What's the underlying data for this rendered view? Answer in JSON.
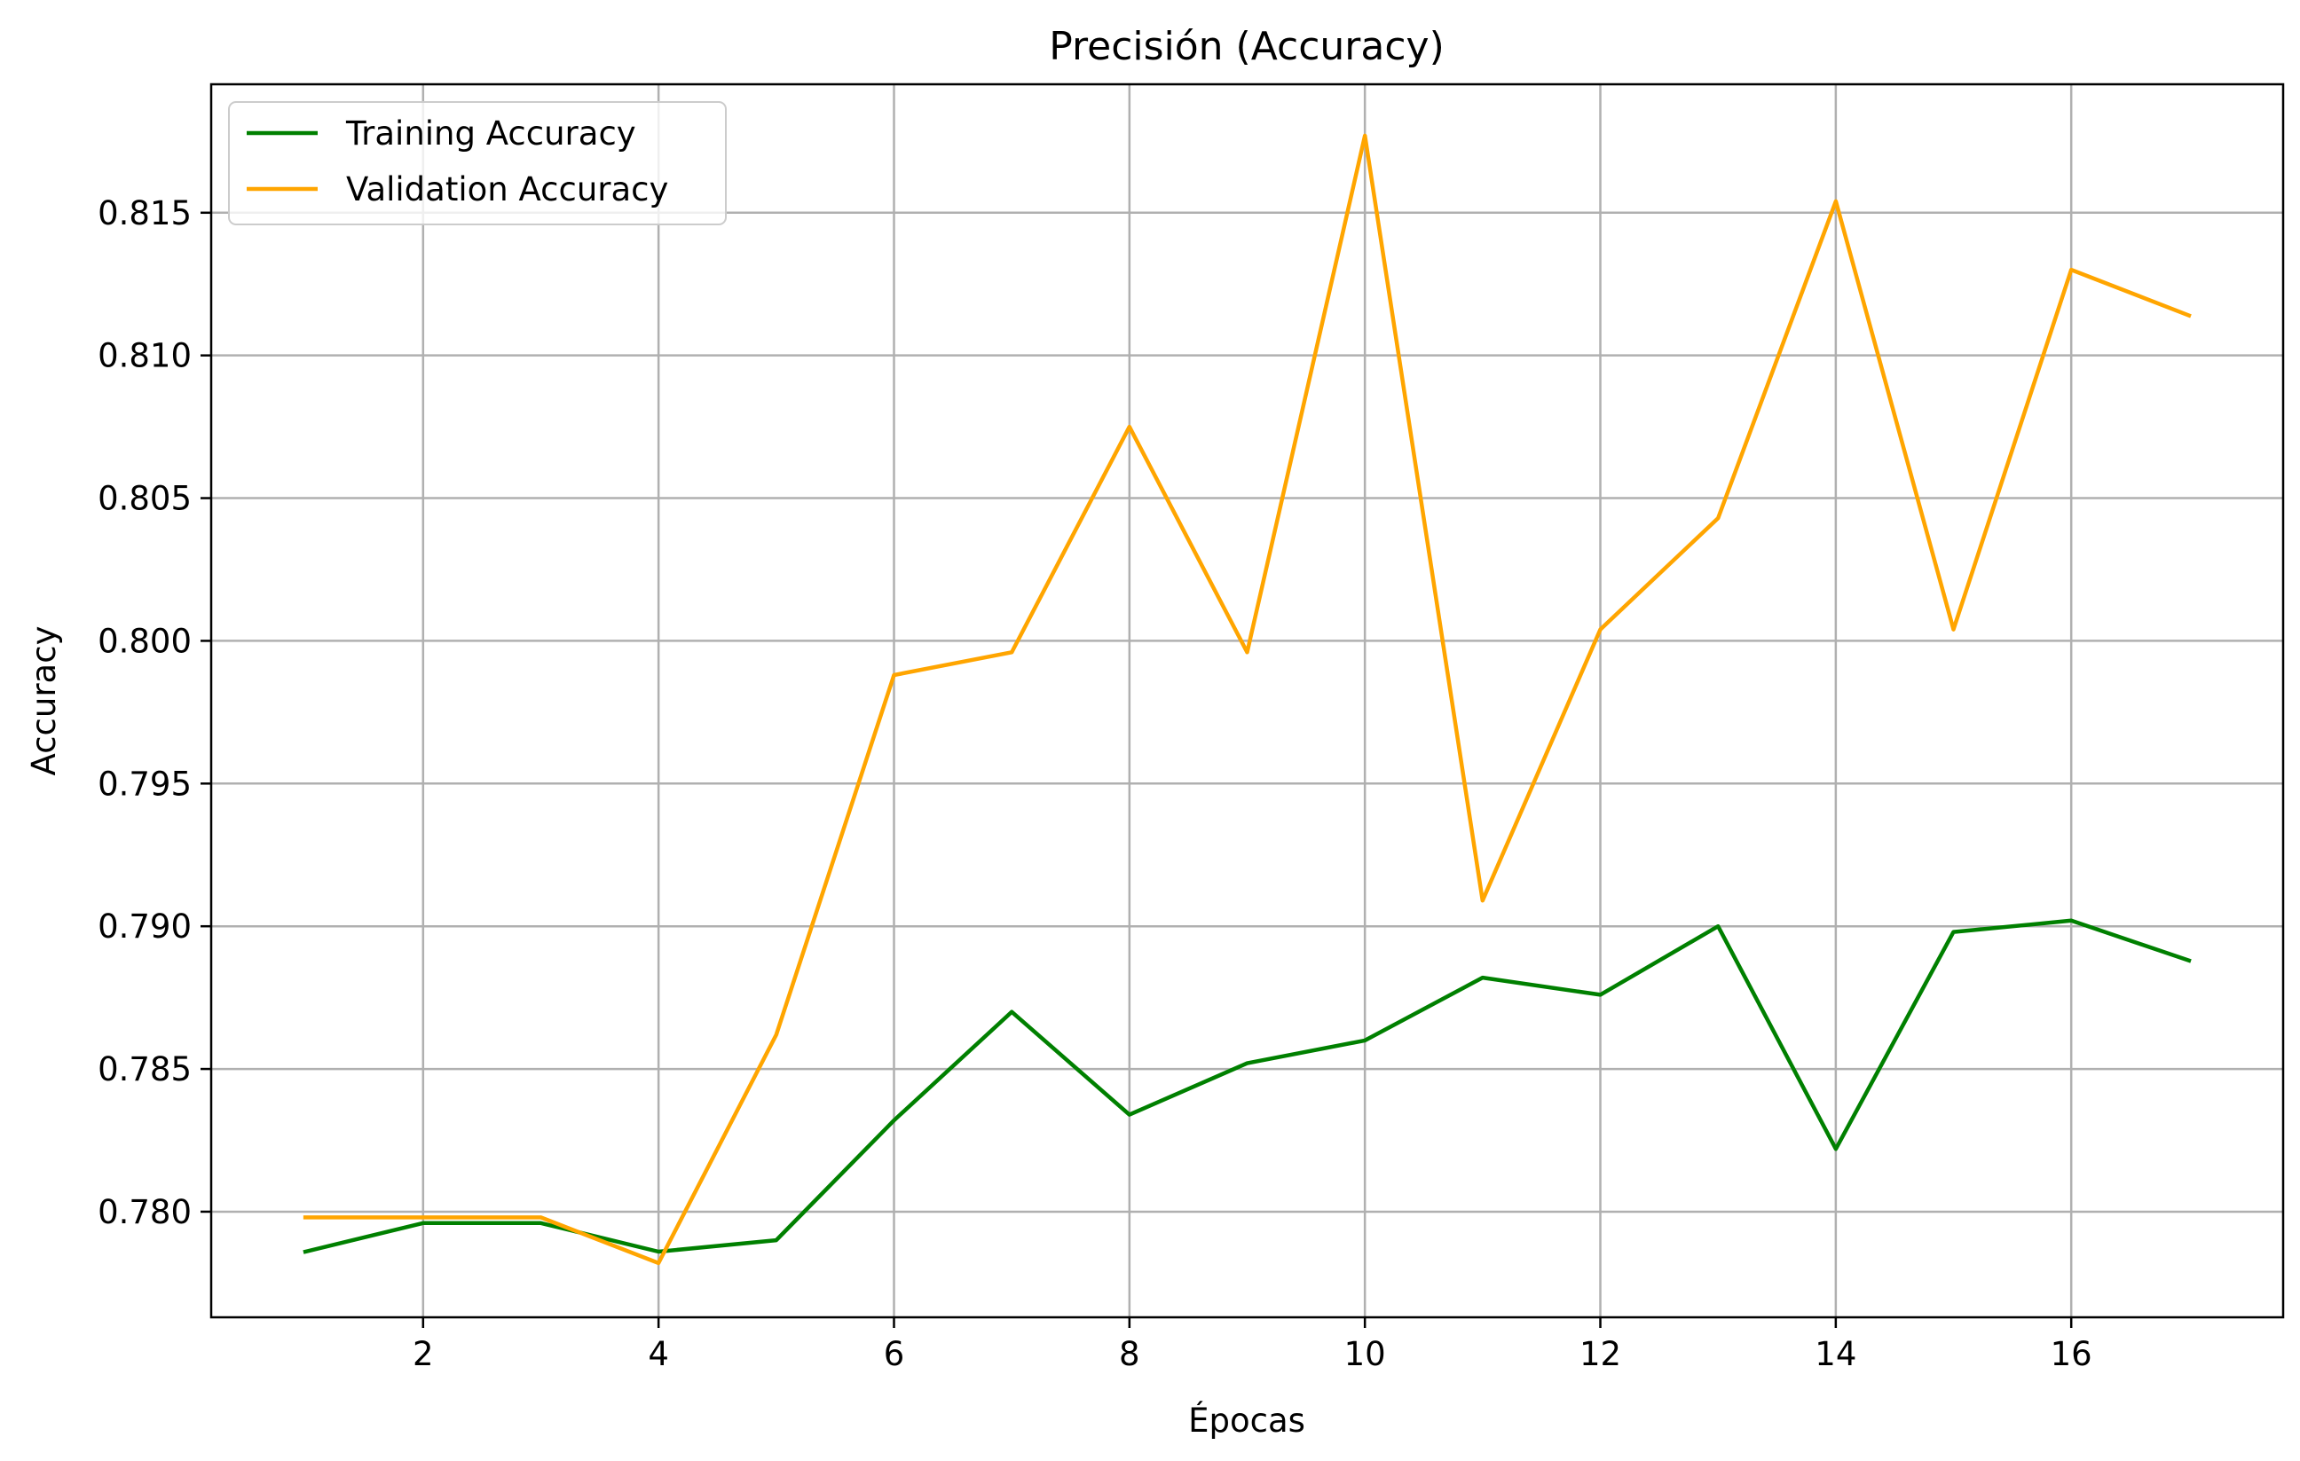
{
  "chart_data": {
    "type": "line",
    "title": "Precisión (Accuracy)",
    "xlabel": "Épocas",
    "ylabel": "Accuracy",
    "x": [
      1,
      2,
      3,
      4,
      5,
      6,
      7,
      8,
      9,
      10,
      11,
      12,
      13,
      14,
      15,
      16,
      17
    ],
    "xlim": [
      0.2,
      17.8
    ],
    "ylim": [
      0.7763,
      0.8195
    ],
    "xticks": [
      2,
      4,
      6,
      8,
      10,
      12,
      14,
      16
    ],
    "xtick_labels": [
      "2",
      "4",
      "6",
      "8",
      "10",
      "12",
      "14",
      "16"
    ],
    "yticks": [
      0.78,
      0.785,
      0.79,
      0.795,
      0.8,
      0.805,
      0.81,
      0.815
    ],
    "ytick_labels": [
      "0.780",
      "0.785",
      "0.790",
      "0.795",
      "0.800",
      "0.805",
      "0.810",
      "0.815"
    ],
    "grid": true,
    "legend_position": "top-left",
    "series": [
      {
        "name": "Training Accuracy",
        "color": "#008000",
        "values": [
          0.7786,
          0.7796,
          0.7796,
          0.7786,
          0.779,
          0.7832,
          0.787,
          0.7834,
          0.7852,
          0.786,
          0.7882,
          0.7876,
          0.79,
          0.7822,
          0.7898,
          0.7902,
          0.7888
        ]
      },
      {
        "name": "Validation Accuracy",
        "color": "#ffa500",
        "values": [
          0.7798,
          0.7798,
          0.7798,
          0.7782,
          0.7862,
          0.7988,
          0.7996,
          0.8075,
          0.7996,
          0.8177,
          0.7909,
          0.8004,
          0.8043,
          0.8154,
          0.8004,
          0.813,
          0.8114
        ]
      }
    ]
  }
}
